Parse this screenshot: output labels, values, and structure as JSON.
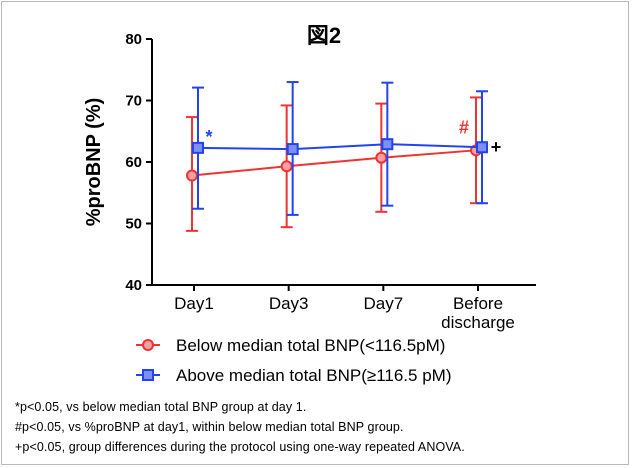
{
  "chart_data": {
    "type": "line",
    "title": "図2",
    "ylabel": "%proBNP (%)",
    "xlabel": "",
    "ylim": [
      40,
      80
    ],
    "yticks": [
      40,
      50,
      60,
      70,
      80
    ],
    "categories": [
      "Day1",
      "Day3",
      "Day7",
      "Before\ndischarge"
    ],
    "series": [
      {
        "name": "Below median total BNP(<116.5pM)",
        "color": "#ee3333",
        "marker": "circle",
        "values": [
          57.8,
          59.3,
          60.7,
          61.9
        ],
        "error_low": [
          48.8,
          49.4,
          51.9,
          53.3
        ],
        "error_high": [
          67.3,
          69.2,
          69.5,
          70.5
        ]
      },
      {
        "name": "Above median total BNP(≥116.5 pM)",
        "color": "#2244ee",
        "marker": "square",
        "values": [
          62.3,
          62.1,
          62.9,
          62.4
        ],
        "error_low": [
          52.4,
          51.4,
          52.9,
          53.3
        ],
        "error_high": [
          72.1,
          73.0,
          72.9,
          71.5
        ]
      }
    ],
    "annotations": [
      {
        "text": "*",
        "series": 1,
        "index": 0,
        "color": "#2244ee"
      },
      {
        "text": "#",
        "series": 0,
        "index": 3,
        "color": "#ee3333"
      },
      {
        "text": "+",
        "series": 1,
        "index": 3,
        "color": "#000000"
      }
    ],
    "grid": false,
    "legend": "bottom"
  },
  "footnotes": [
    "*p<0.05, vs below  median total BNP group at day 1.",
    "#p<0.05, vs %proBNP at day1, within below median total BNP group.",
    "+p<0.05, group differences  during the protocol using one-way repeated  ANOVA."
  ]
}
